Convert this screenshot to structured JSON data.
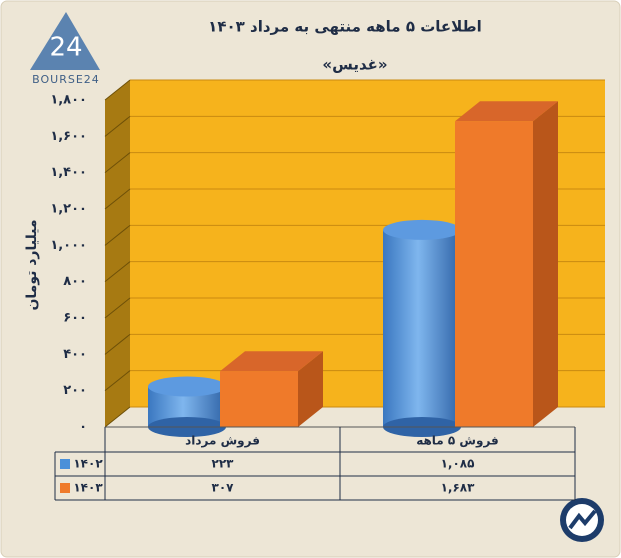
{
  "logo": "BOURSE24",
  "chart_data": {
    "type": "bar3d",
    "title": "اطلاعات ۵ ماهه منتهی به مرداد ۱۴۰۳",
    "subtitle": "«غدیس»",
    "y_label": "میلیارد تومان",
    "categories": [
      "فروش مرداد",
      "فروش ۵ ماهه"
    ],
    "series": [
      {
        "name": "۱۴۰۲",
        "color": "#4a90d9",
        "values": [
          223,
          1085
        ],
        "value_labels": [
          "۲۲۳",
          "۱,۰۸۵"
        ]
      },
      {
        "name": "۱۴۰۳",
        "color": "#ef7a2a",
        "values": [
          307,
          1683
        ],
        "value_labels": [
          "۳۰۷",
          "۱,۶۸۳"
        ]
      }
    ],
    "ylim": [
      0,
      1800
    ],
    "yticks": [
      {
        "value": 0,
        "label": "۰"
      },
      {
        "value": 200,
        "label": "۲۰۰"
      },
      {
        "value": 400,
        "label": "۴۰۰"
      },
      {
        "value": 600,
        "label": "۶۰۰"
      },
      {
        "value": 800,
        "label": "۸۰۰"
      },
      {
        "value": 1000,
        "label": "۱,۰۰۰"
      },
      {
        "value": 1200,
        "label": "۱,۲۰۰"
      },
      {
        "value": 1400,
        "label": "۱,۴۰۰"
      },
      {
        "value": 1600,
        "label": "۱,۶۰۰"
      },
      {
        "value": 1800,
        "label": "۱,۸۰۰"
      }
    ],
    "grid": true,
    "wall_color": "#f6b31c",
    "data_table": true
  }
}
